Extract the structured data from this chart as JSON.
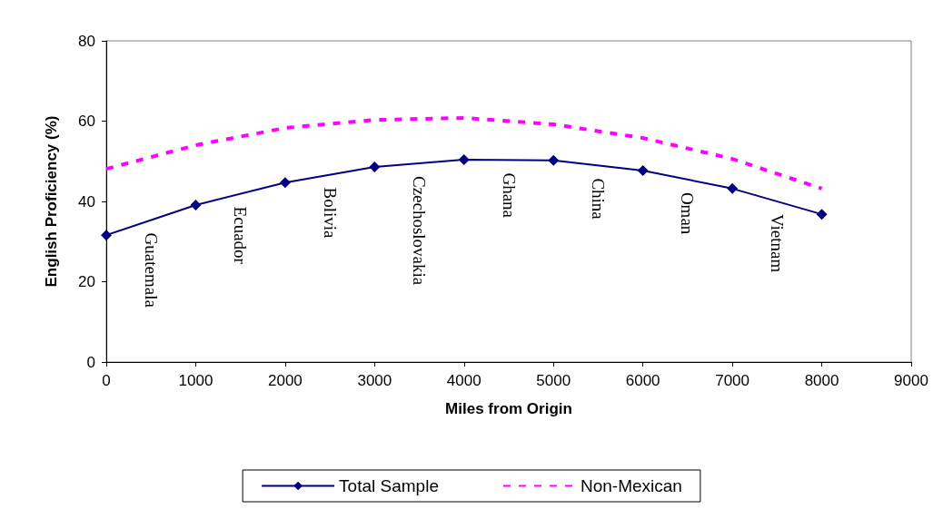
{
  "chart_data": {
    "type": "line",
    "xlabel": "Miles from Origin",
    "ylabel": "English Proficiency (%)",
    "x": [
      0,
      1000,
      2000,
      3000,
      4000,
      5000,
      6000,
      7000,
      8000
    ],
    "series": [
      {
        "name": "Total Sample",
        "color": "#000080",
        "marker": "diamond",
        "line_style": "solid",
        "values": [
          31.6,
          39.1,
          44.7,
          48.6,
          50.4,
          50.2,
          47.7,
          43.2,
          36.8
        ]
      },
      {
        "name": "Non-Mexican",
        "color": "#ff00ff",
        "marker": "none",
        "line_style": "dashed",
        "values": [
          48.1,
          54,
          58.3,
          60.3,
          60.8,
          59.2,
          55.8,
          50.6,
          43.2
        ]
      }
    ],
    "xlim": [
      0,
      9000
    ],
    "xticks": [
      0,
      1000,
      2000,
      3000,
      4000,
      5000,
      6000,
      7000,
      8000,
      9000
    ],
    "ylim": [
      0,
      80
    ],
    "yticks": [
      0,
      20,
      40,
      60,
      80
    ],
    "grid": false,
    "legend": "bottom",
    "annotations": [
      "Guatemala",
      "Ecuador",
      "Bolivia",
      "Czechoslovakia",
      "Ghana",
      "China",
      "Oman",
      "Vietnam"
    ]
  }
}
